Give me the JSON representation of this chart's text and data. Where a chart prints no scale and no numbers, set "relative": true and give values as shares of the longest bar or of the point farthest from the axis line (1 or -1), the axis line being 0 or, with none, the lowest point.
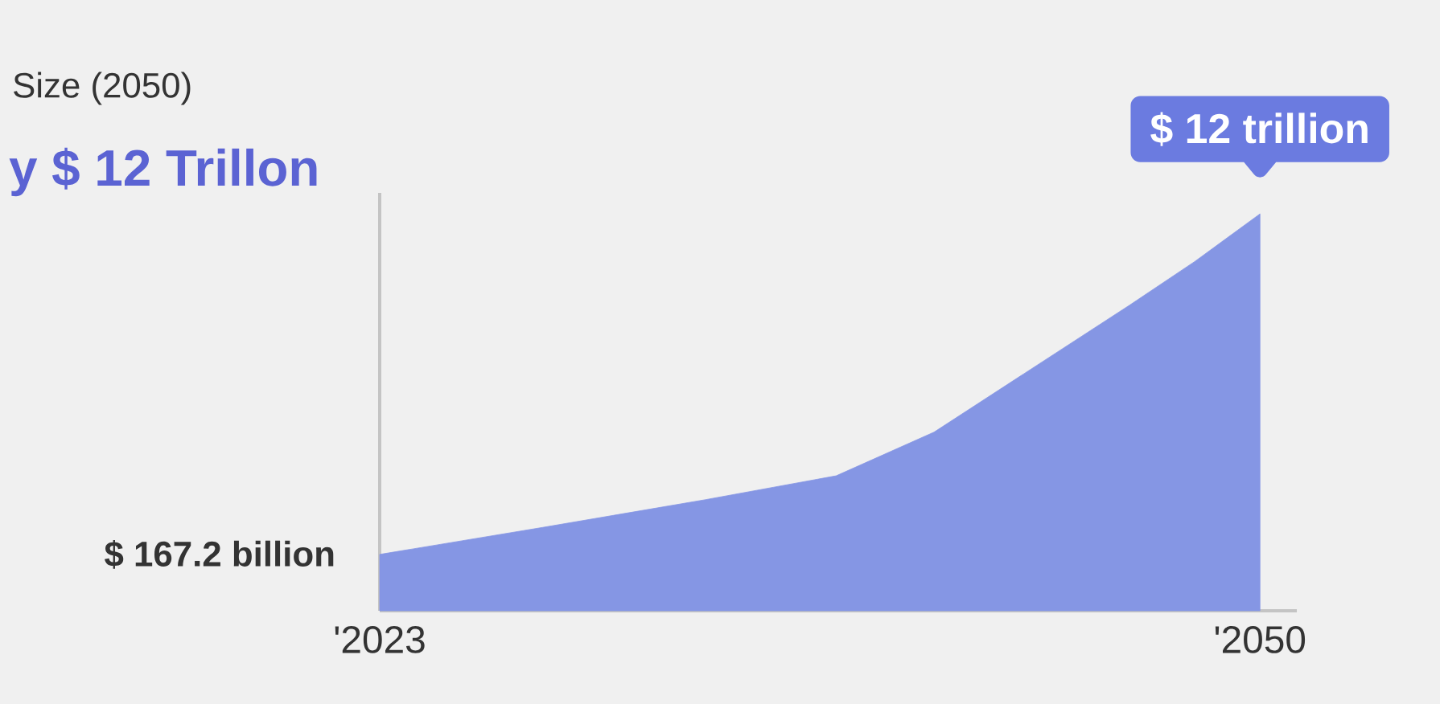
{
  "chart_data": {
    "type": "area",
    "title": "Size (2050)",
    "subtitle": "y $ 12 Trillon",
    "relative": true,
    "color": "#8596e4",
    "x": [
      2023,
      2028,
      2033,
      2037,
      2040,
      2043,
      2046,
      2048,
      2050
    ],
    "values": [
      0.142,
      0.21,
      0.28,
      0.34,
      0.45,
      0.61,
      0.77,
      0.88,
      1
    ],
    "xlim": [
      2023,
      2051.13
    ],
    "xticks": [
      {
        "value": 2023,
        "label": "'2023"
      },
      {
        "value": 2050,
        "label": "'2050"
      }
    ],
    "annotations": [
      {
        "text": "$ 167.2 billion",
        "x": 2023,
        "y": 0.142
      },
      {
        "text": "$ 12 trillion",
        "x": 2050,
        "y": 1
      }
    ],
    "grid": false
  }
}
